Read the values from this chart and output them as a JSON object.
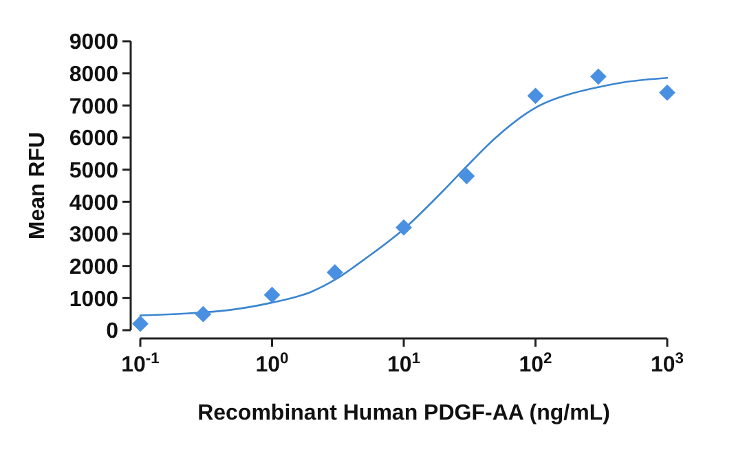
{
  "chart_data": {
    "type": "scatter",
    "xlabel": "Recombinant Human PDGF-AA (ng/mL)",
    "ylabel": "Mean RFU",
    "log": "x",
    "xlim": [
      0.1,
      1000
    ],
    "ylim": [
      0,
      9000
    ],
    "xticks": [
      {
        "value": 0.1,
        "label": "10$^{-1}$"
      },
      {
        "value": 1,
        "label": "10$^{0}$"
      },
      {
        "value": 10,
        "label": "10$^{1}$"
      },
      {
        "value": 100,
        "label": "10$^{2}$"
      },
      {
        "value": 1000,
        "label": "10$^{3}$"
      }
    ],
    "yticks": [
      0,
      1000,
      2000,
      3000,
      4000,
      5000,
      6000,
      7000,
      8000,
      9000
    ],
    "grid": false,
    "series": [
      {
        "type": "line",
        "color": "#3b86d1",
        "marker": "none",
        "line_style": "solid",
        "x": [
          0.1,
          0.2,
          0.5,
          1,
          2,
          3,
          5,
          10,
          20,
          30,
          50,
          100,
          200,
          300,
          500,
          1000
        ],
        "values": [
          460,
          510,
          640,
          860,
          1200,
          1570,
          2200,
          3150,
          4350,
          5100,
          6000,
          6930,
          7400,
          7570,
          7740,
          7860
        ]
      },
      {
        "color": "#4a90e2",
        "marker": "diamond",
        "x": [
          0.1,
          0.3,
          1,
          3,
          10,
          30,
          100,
          300,
          1000
        ],
        "values": [
          200,
          500,
          1100,
          1800,
          3200,
          4800,
          7300,
          7900,
          7400
        ]
      }
    ]
  }
}
